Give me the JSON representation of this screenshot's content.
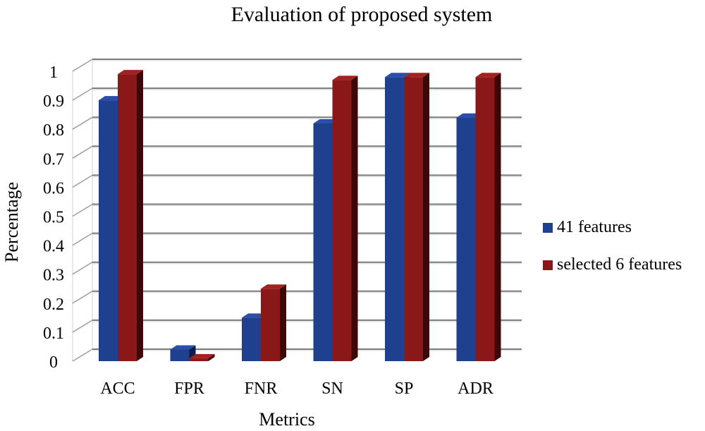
{
  "chart_data": {
    "type": "bar",
    "title": "Evaluation of proposed system",
    "xlabel": "Metrics",
    "ylabel": "Percentage",
    "categories": [
      "ACC",
      "FPR",
      "FNR",
      "SN",
      "SP",
      "ADR"
    ],
    "series": [
      {
        "name": "41 features",
        "values": [
          0.9,
          0.04,
          0.15,
          0.82,
          0.98,
          0.84
        ],
        "color": "#1F3F8F",
        "side_color": "#0C1D4D",
        "top_color": "#2B4FA8"
      },
      {
        "name": "selected 6 features",
        "values": [
          0.99,
          0.01,
          0.25,
          0.97,
          0.98,
          0.98
        ],
        "color": "#8B1818",
        "side_color": "#3E0707",
        "top_color": "#A22121"
      }
    ],
    "ylim": [
      0,
      1
    ],
    "yticks": [
      "0",
      "0.1",
      "0.2",
      "0.3",
      "0.4",
      "0.5",
      "0.6",
      "0.7",
      "0.8",
      "0.9",
      "1"
    ],
    "grid": true,
    "legend_position": "right",
    "style": "3d-clustered-bar"
  }
}
